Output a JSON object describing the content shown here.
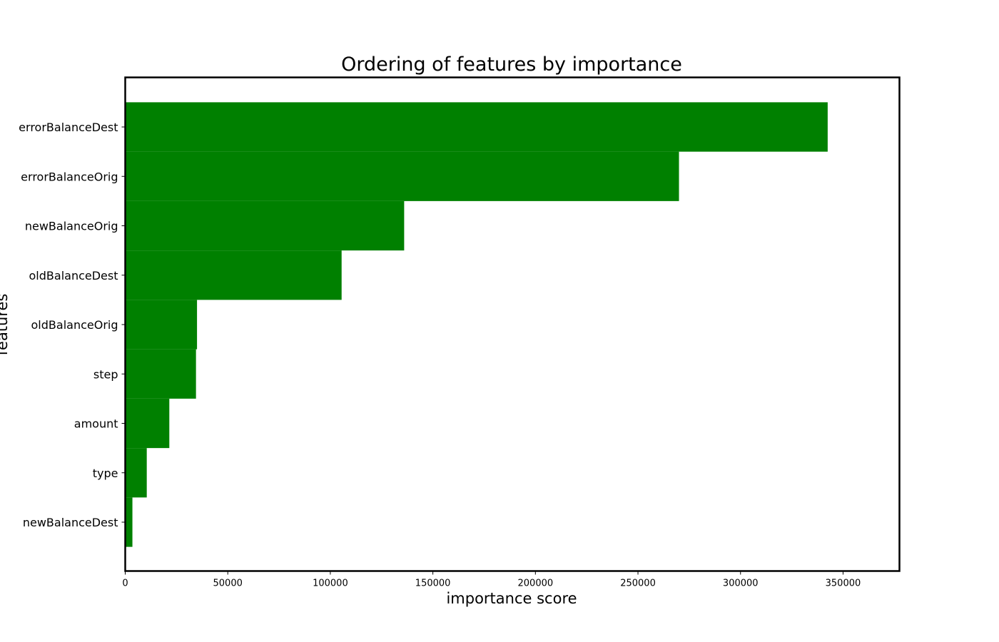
{
  "chart_data": {
    "type": "bar",
    "orientation": "horizontal",
    "title": "Ordering of features by importance",
    "xlabel": "importance score",
    "ylabel": "features",
    "categories": [
      "errorBalanceDest",
      "errorBalanceOrig",
      "newBalanceOrig",
      "oldBalanceDest",
      "oldBalanceOrig",
      "step",
      "amount",
      "type",
      "newBalanceDest"
    ],
    "values": [
      342500,
      270000,
      136000,
      105500,
      35000,
      34500,
      21500,
      10500,
      3500
    ],
    "xlim": [
      0,
      377500
    ],
    "xticks": [
      0,
      50000,
      100000,
      150000,
      200000,
      250000,
      300000,
      350000
    ],
    "xtick_labels": [
      "0",
      "50000",
      "100000",
      "150000",
      "200000",
      "250000",
      "300000",
      "350000"
    ],
    "bar_color": "#008000",
    "grid": false,
    "legend": "none"
  }
}
